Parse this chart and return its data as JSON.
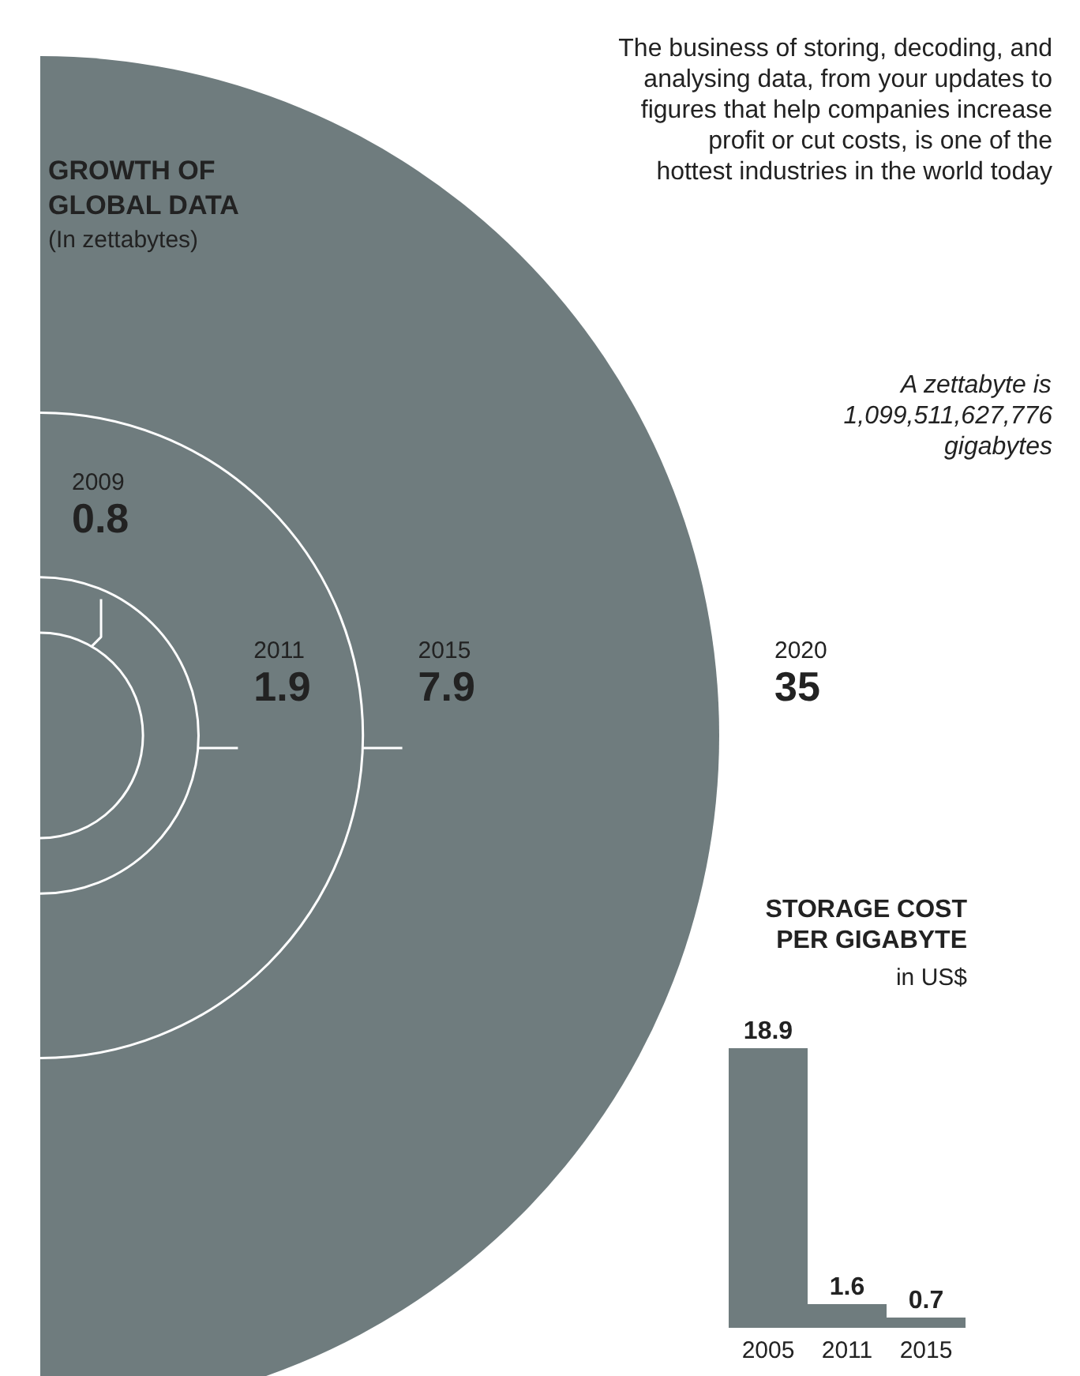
{
  "chart_data": [
    {
      "type": "other",
      "title": "GROWTH OF GLOBAL DATA",
      "subtitle": "(In zettabytes)",
      "categories": [
        "2009",
        "2011",
        "2015",
        "2020"
      ],
      "values": [
        0.8,
        1.9,
        7.9,
        35
      ],
      "color": "#6f7c7e",
      "data_labels": true,
      "annotations": [
        "The business of storing, decoding, and analysing data, from your updates to figures that help companies increase profit or cut costs, is one of the hottest industries in the world today",
        "A zettabyte is 1,099,511,627,776 gigabytes"
      ]
    },
    {
      "type": "bar",
      "title": "STORAGE COST PER GIGABYTE",
      "subtitle": "in US$",
      "categories": [
        "2005",
        "2011",
        "2015"
      ],
      "values": [
        18.9,
        1.6,
        0.7
      ],
      "color": "#6f7c7e",
      "data_labels": true
    }
  ]
}
